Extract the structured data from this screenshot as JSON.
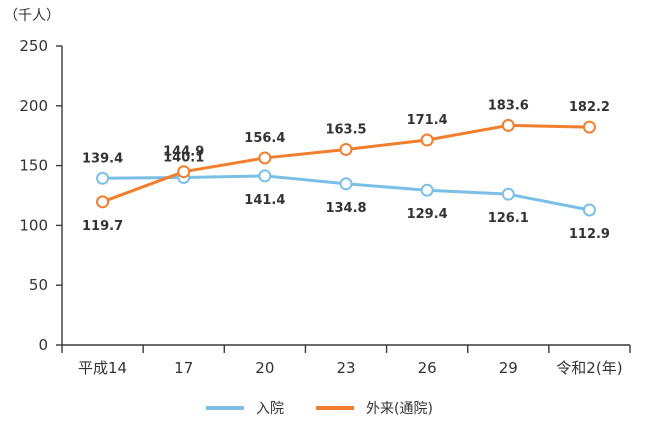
{
  "chart_data": {
    "type": "line",
    "y_unit": "（千人）",
    "categories": [
      "平成14",
      "17",
      "20",
      "23",
      "26",
      "29",
      "令和2(年)"
    ],
    "ylim": [
      0,
      250
    ],
    "yticks": [
      "0",
      "50",
      "100",
      "150",
      "200",
      "250"
    ],
    "grid": false,
    "legend_position": "bottom-center",
    "series": [
      {
        "name": "入院",
        "color": "#7bbfe6",
        "values": [
          139.4,
          140.1,
          141.4,
          134.8,
          129.4,
          126.1,
          112.9
        ],
        "labels": [
          "139.4",
          "140.1",
          "141.4",
          "134.8",
          "129.4",
          "126.1",
          "112.9"
        ]
      },
      {
        "name": "外来(通院)",
        "color": "#f07e2c",
        "values": [
          119.7,
          144.9,
          156.4,
          163.5,
          171.4,
          183.6,
          182.2
        ],
        "labels": [
          "119.7",
          "144.9",
          "156.4",
          "163.5",
          "171.4",
          "183.6",
          "182.2"
        ]
      }
    ]
  }
}
